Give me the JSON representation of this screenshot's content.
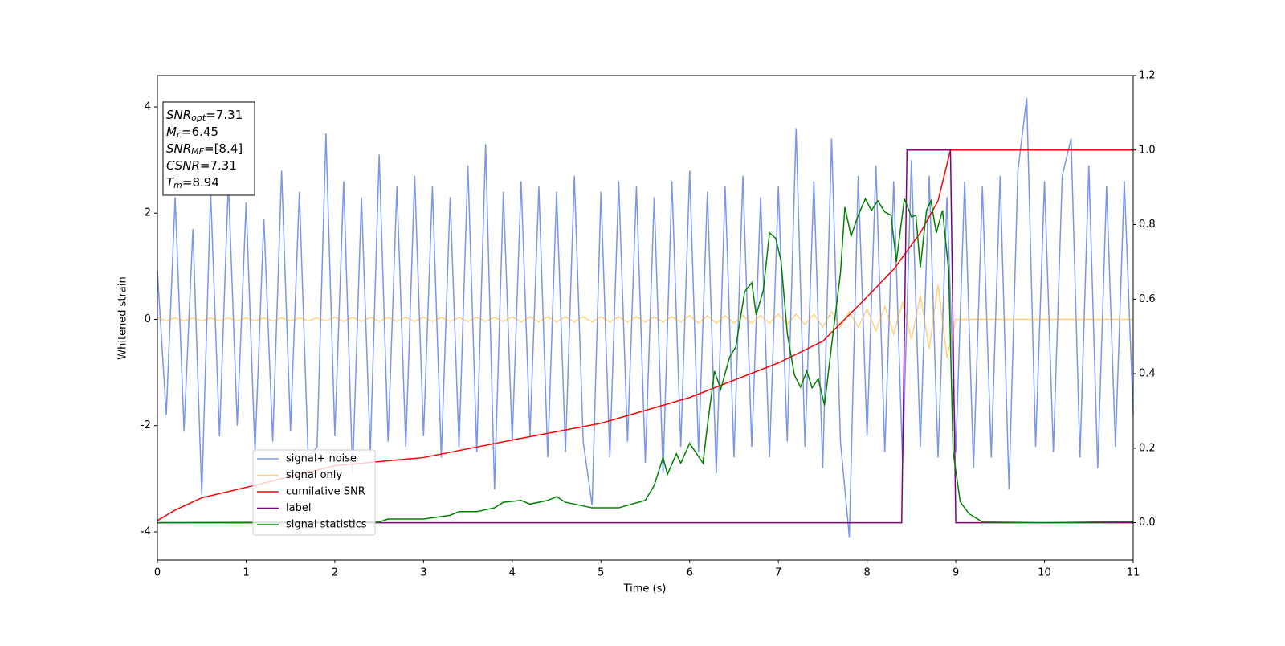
{
  "chart_data": {
    "type": "line",
    "xlabel": "Time (s)",
    "ylabel": "Whitened strain",
    "xlim": [
      0,
      11
    ],
    "ylim": [
      -4.53,
      4.59
    ],
    "y2lim": [
      -0.1,
      1.2
    ],
    "xticks": [
      0,
      1,
      2,
      3,
      4,
      5,
      6,
      7,
      8,
      9,
      10,
      11
    ],
    "yticks": [
      -4,
      -2,
      0,
      2,
      4
    ],
    "y2ticks": [
      {
        "value": 0,
        "label": "0.0"
      },
      0.2,
      0.4,
      0.6,
      0.8,
      {
        "value": 1,
        "label": "1.0"
      },
      1.2
    ],
    "legend_loc": "lower left",
    "annotations": [
      {
        "symbol": "SNR",
        "subscript": "opt",
        "text": "=7.31"
      },
      {
        "symbol": "M",
        "subscript": "c",
        "text": "=6.45"
      },
      {
        "symbol": "SNR",
        "subscript": "MF",
        "text": "=[8.4]"
      },
      {
        "symbol": "CSNR",
        "text": "=7.31"
      },
      {
        "symbol": "T",
        "subscript": "m",
        "text": "=8.94"
      }
    ],
    "x": [
      0,
      0.1,
      0.2,
      0.3,
      0.4,
      0.5,
      0.6,
      0.7,
      0.8,
      0.9,
      1,
      1.1,
      1.2,
      1.3,
      1.4,
      1.5,
      1.6,
      1.7,
      1.8,
      1.9,
      2,
      2.1,
      2.2,
      2.3,
      2.4,
      2.5,
      2.6,
      2.7,
      2.8,
      2.9,
      3,
      3.1,
      3.2,
      3.3,
      3.4,
      3.5,
      3.6,
      3.7,
      3.8,
      3.9,
      4,
      4.1,
      4.2,
      4.3,
      4.4,
      4.5,
      4.6,
      4.7,
      4.8,
      4.9,
      5,
      5.1,
      5.2,
      5.3,
      5.4,
      5.5,
      5.6,
      5.7,
      5.8,
      5.9,
      6,
      6.1,
      6.2,
      6.3,
      6.4,
      6.5,
      6.6,
      6.7,
      6.8,
      6.9,
      7,
      7.1,
      7.2,
      7.3,
      7.4,
      7.5,
      7.6,
      7.7,
      7.8,
      7.9,
      8,
      8.1,
      8.2,
      8.3,
      8.4,
      8.5,
      8.6,
      8.7,
      8.8,
      8.9,
      9,
      9.1,
      9.2,
      9.3,
      9.4,
      9.5,
      9.6,
      9.7,
      9.8,
      9.9,
      10,
      10.1,
      10.2,
      10.3,
      10.4,
      10.5,
      10.6,
      10.7,
      10.8,
      10.9,
      11
    ],
    "series": [
      {
        "name": "signal+ noise",
        "color": "#4169e1",
        "alpha": 0.7,
        "axis": "y",
        "values": [
          0.9,
          -1.8,
          2.3,
          -2.1,
          1.7,
          -3.3,
          2.4,
          -2.2,
          2.6,
          -2.0,
          2.2,
          -2.5,
          1.9,
          -2.3,
          2.8,
          -2.1,
          2.4,
          -2.6,
          -2.4,
          3.5,
          -2.2,
          2.6,
          -2.9,
          2.3,
          -2.5,
          3.1,
          -2.3,
          2.5,
          -2.4,
          2.7,
          -2.2,
          2.5,
          -2.6,
          2.3,
          -2.4,
          2.9,
          -2.5,
          3.3,
          -3.2,
          2.4,
          -2.3,
          2.6,
          -2.2,
          2.5,
          -2.6,
          2.4,
          -2.5,
          2.7,
          -2.3,
          -3.5,
          2.4,
          -2.6,
          2.6,
          -2.3,
          2.5,
          -2.7,
          2.3,
          -2.9,
          2.6,
          -2.4,
          2.8,
          -2.5,
          2.4,
          -2.9,
          2.5,
          -2.6,
          2.7,
          -2.4,
          2.3,
          -2.6,
          2.5,
          -2.3,
          3.6,
          -2.4,
          2.6,
          -2.8,
          3.4,
          -2.3,
          -4.1,
          2.7,
          -2.2,
          2.9,
          -2.5,
          2.6,
          -2.7,
          3.0,
          -2.4,
          2.7,
          -2.6,
          2.3,
          -2.5,
          2.6,
          -2.8,
          2.5,
          -2.6,
          2.7,
          -3.2,
          2.8,
          4.17,
          -2.4,
          2.6,
          -2.5,
          2.7,
          3.4,
          -2.6,
          2.9,
          -2.8,
          2.5,
          -2.4,
          2.6,
          -1.8
        ]
      },
      {
        "name": "signal only",
        "color": "#ffa500",
        "alpha": 0.5,
        "axis": "y",
        "values": [
          0.03,
          -0.03,
          0.03,
          -0.03,
          0.03,
          -0.03,
          0.03,
          -0.03,
          0.03,
          -0.03,
          0.03,
          -0.03,
          0.03,
          -0.03,
          0.03,
          -0.03,
          0.03,
          -0.03,
          0.03,
          -0.03,
          0.04,
          -0.04,
          0.04,
          -0.04,
          0.04,
          -0.04,
          0.04,
          -0.04,
          0.04,
          -0.04,
          0.04,
          -0.04,
          0.04,
          -0.04,
          0.04,
          -0.04,
          0.04,
          -0.04,
          0.04,
          -0.04,
          0.05,
          -0.05,
          0.05,
          -0.05,
          0.05,
          -0.05,
          0.05,
          -0.05,
          0.05,
          -0.05,
          0.05,
          -0.05,
          0.05,
          -0.05,
          0.05,
          -0.05,
          0.05,
          -0.05,
          0.05,
          -0.05,
          0.07,
          -0.07,
          0.07,
          -0.07,
          0.07,
          -0.07,
          0.07,
          -0.07,
          0.07,
          -0.07,
          0.1,
          -0.1,
          0.1,
          -0.1,
          0.1,
          -0.15,
          0.15,
          -0.15,
          0.15,
          -0.15,
          0.2,
          -0.22,
          0.25,
          -0.28,
          0.32,
          -0.38,
          0.45,
          -0.55,
          0.65,
          -0.72,
          0,
          0,
          0,
          0,
          0,
          0,
          0,
          0,
          0,
          0,
          0,
          0,
          0,
          0,
          0,
          0,
          0,
          0,
          0,
          0,
          0
        ]
      },
      {
        "name": "cumilative SNR",
        "color": "#ff0000",
        "alpha": 1,
        "axis": "y2",
        "x": [
          0,
          0.2,
          0.5,
          1,
          2,
          3,
          4,
          5,
          6,
          7,
          7.5,
          8,
          8.3,
          8.6,
          8.8,
          8.94,
          11
        ],
        "values": [
          0.006,
          0.034,
          0.067,
          0.095,
          0.153,
          0.175,
          0.222,
          0.267,
          0.336,
          0.429,
          0.487,
          0.606,
          0.68,
          0.778,
          0.864,
          1,
          1
        ]
      },
      {
        "name": "label",
        "color": "#800080",
        "alpha": 1,
        "axis": "y2",
        "x": [
          0,
          8.39,
          8.45,
          8.94,
          9.0,
          11
        ],
        "values": [
          0,
          0,
          1,
          1,
          0,
          0
        ]
      },
      {
        "name": "signal statistics",
        "color": "#008000",
        "alpha": 1,
        "axis": "y2",
        "x": [
          0,
          2.5,
          2.6,
          3.0,
          3.3,
          3.4,
          3.6,
          3.8,
          3.9,
          4.1,
          4.2,
          4.4,
          4.5,
          4.6,
          4.9,
          5.2,
          5.5,
          5.6,
          5.7,
          5.75,
          5.85,
          5.9,
          6.0,
          6.15,
          6.2,
          6.28,
          6.35,
          6.45,
          6.52,
          6.62,
          6.7,
          6.75,
          6.83,
          6.9,
          6.97,
          7.03,
          7.1,
          7.18,
          7.25,
          7.32,
          7.38,
          7.45,
          7.52,
          7.6,
          7.7,
          7.75,
          7.82,
          7.9,
          7.98,
          8.05,
          8.12,
          8.2,
          8.27,
          8.33,
          8.42,
          8.5,
          8.55,
          8.6,
          8.67,
          8.72,
          8.78,
          8.85,
          8.92,
          8.97,
          9.05,
          9.15,
          9.3,
          10,
          11
        ],
        "values": [
          0,
          0.002,
          0.01,
          0.01,
          0.02,
          0.03,
          0.03,
          0.04,
          0.055,
          0.06,
          0.05,
          0.06,
          0.07,
          0.055,
          0.04,
          0.04,
          0.06,
          0.1,
          0.175,
          0.13,
          0.185,
          0.16,
          0.213,
          0.16,
          0.26,
          0.407,
          0.358,
          0.444,
          0.472,
          0.62,
          0.644,
          0.558,
          0.623,
          0.778,
          0.763,
          0.703,
          0.509,
          0.397,
          0.364,
          0.407,
          0.362,
          0.386,
          0.315,
          0.476,
          0.67,
          0.847,
          0.769,
          0.825,
          0.869,
          0.838,
          0.864,
          0.834,
          0.825,
          0.7,
          0.869,
          0.821,
          0.825,
          0.685,
          0.838,
          0.864,
          0.778,
          0.838,
          0.677,
          0.19,
          0.056,
          0.024,
          0.002,
          0,
          0.003
        ]
      }
    ]
  }
}
